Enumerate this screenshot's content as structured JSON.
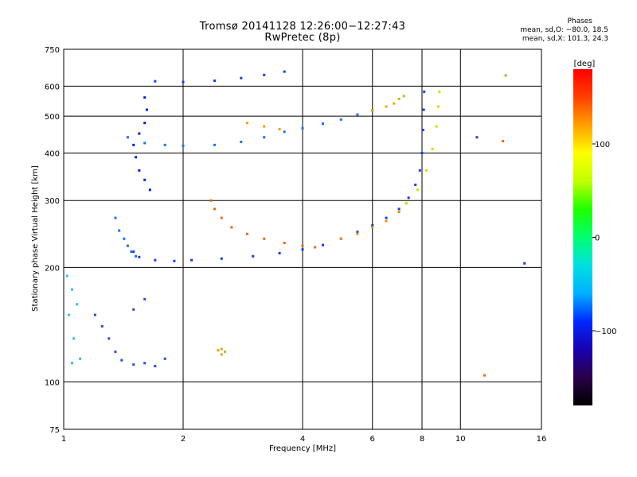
{
  "title_line1": "Tromsø 20141128 12:26:00−12:27:43",
  "title_line2": "RwPretec (8p)",
  "phases": {
    "heading": "Phases",
    "line_o": "mean, sd,O: −80.0, 18.5",
    "line_x": "mean, sd,X: 101.3, 24.3"
  },
  "colorbar": {
    "label": "[deg]",
    "ticks": [
      {
        "value": 100,
        "label": "100"
      },
      {
        "value": 0,
        "label": "0"
      },
      {
        "value": -100,
        "label": "−100"
      }
    ],
    "range": [
      -180,
      180
    ],
    "stops": [
      "#000000",
      "#2a0048",
      "#1a00b0",
      "#0028ff",
      "#00b0ff",
      "#00e0e0",
      "#00ff70",
      "#20ff00",
      "#c0ff00",
      "#ffff00",
      "#ffa000",
      "#ff4000",
      "#ff0000"
    ]
  },
  "chart_data": {
    "type": "scatter",
    "xlabel": "Frequency [MHz]",
    "ylabel": "Stationary phase Virtual Height [km]",
    "xscale": "log",
    "yscale": "log",
    "xlim": [
      1,
      16
    ],
    "ylim": [
      75,
      750
    ],
    "xticks": [
      {
        "value": 1,
        "label": "1"
      },
      {
        "value": 2,
        "label": "2"
      },
      {
        "value": 4,
        "label": "4"
      },
      {
        "value": 6,
        "label": "6"
      },
      {
        "value": 8,
        "label": "8"
      },
      {
        "value": 10,
        "label": "10"
      },
      {
        "value": 16,
        "label": "16"
      }
    ],
    "yticks": [
      {
        "value": 75,
        "label": "75"
      },
      {
        "value": 100,
        "label": "100"
      },
      {
        "value": 200,
        "label": "200"
      },
      {
        "value": 300,
        "label": "300"
      },
      {
        "value": 400,
        "label": "400"
      },
      {
        "value": 500,
        "label": "500"
      },
      {
        "value": 600,
        "label": "600"
      },
      {
        "value": 750,
        "label": "750"
      }
    ],
    "grid": true,
    "series": [
      {
        "color": "#1040e0",
        "points": [
          [
            1.5,
            220
          ],
          [
            1.55,
            213
          ],
          [
            1.7,
            209
          ],
          [
            1.9,
            208
          ],
          [
            2.1,
            209
          ],
          [
            2.5,
            211
          ],
          [
            3.0,
            214
          ],
          [
            3.5,
            218
          ],
          [
            4.0,
            223
          ],
          [
            4.5,
            229
          ],
          [
            5.0,
            238
          ],
          [
            5.5,
            248
          ],
          [
            6.0,
            258
          ],
          [
            6.5,
            270
          ],
          [
            7.0,
            285
          ],
          [
            7.4,
            305
          ],
          [
            7.7,
            330
          ],
          [
            7.9,
            360
          ],
          [
            8.0,
            400
          ],
          [
            8.05,
            460
          ],
          [
            8.08,
            520
          ],
          [
            8.1,
            580
          ]
        ]
      },
      {
        "color": "#1a6fe8",
        "points": [
          [
            1.35,
            270
          ],
          [
            1.38,
            250
          ],
          [
            1.42,
            238
          ],
          [
            1.45,
            228
          ],
          [
            1.48,
            220
          ],
          [
            1.52,
            214
          ]
        ]
      },
      {
        "color": "#e86a10",
        "points": [
          [
            2.35,
            300
          ],
          [
            2.4,
            285
          ],
          [
            2.5,
            270
          ],
          [
            2.65,
            255
          ],
          [
            2.9,
            245
          ],
          [
            3.2,
            238
          ],
          [
            3.6,
            232
          ],
          [
            4.0,
            228
          ],
          [
            4.3,
            226
          ]
        ]
      },
      {
        "color": "#f08c00",
        "points": [
          [
            5.0,
            238
          ],
          [
            5.5,
            245
          ],
          [
            6.0,
            255
          ],
          [
            6.5,
            265
          ],
          [
            7.0,
            280
          ],
          [
            7.3,
            295
          ]
        ]
      },
      {
        "color": "#c8e000",
        "points": [
          [
            7.3,
            295
          ],
          [
            7.8,
            320
          ],
          [
            8.2,
            360
          ],
          [
            8.5,
            410
          ],
          [
            8.7,
            470
          ],
          [
            8.8,
            530
          ],
          [
            8.85,
            580
          ]
        ]
      },
      {
        "color": "#1040e0",
        "points": [
          [
            1.7,
            618
          ],
          [
            2.0,
            615
          ],
          [
            2.4,
            620
          ],
          [
            2.8,
            630
          ],
          [
            3.2,
            642
          ],
          [
            3.6,
            655
          ]
        ]
      },
      {
        "color": "#2070e8",
        "points": [
          [
            1.45,
            440
          ],
          [
            1.6,
            425
          ],
          [
            1.8,
            420
          ],
          [
            2.0,
            418
          ],
          [
            2.4,
            420
          ],
          [
            2.8,
            428
          ],
          [
            3.2,
            440
          ],
          [
            3.6,
            455
          ],
          [
            4.0,
            465
          ],
          [
            4.5,
            478
          ],
          [
            5.0,
            490
          ],
          [
            5.5,
            505
          ],
          [
            6.0,
            518
          ]
        ]
      },
      {
        "color": "#e0b000",
        "points": [
          [
            6.0,
            518
          ],
          [
            6.5,
            530
          ],
          [
            6.8,
            540
          ],
          [
            7.0,
            555
          ],
          [
            7.2,
            565
          ]
        ]
      },
      {
        "color": "#0020d0",
        "points": [
          [
            1.6,
            560
          ],
          [
            1.62,
            520
          ],
          [
            1.6,
            480
          ],
          [
            1.55,
            450
          ],
          [
            1.5,
            420
          ],
          [
            1.52,
            390
          ],
          [
            1.55,
            360
          ],
          [
            1.6,
            340
          ],
          [
            1.65,
            320
          ]
        ]
      },
      {
        "color": "#f0a000",
        "points": [
          [
            2.9,
            480
          ],
          [
            3.2,
            470
          ],
          [
            3.5,
            462
          ]
        ]
      },
      {
        "color": "#2050d0",
        "points": [
          [
            1.2,
            150
          ],
          [
            1.25,
            140
          ],
          [
            1.3,
            130
          ],
          [
            1.35,
            120
          ],
          [
            1.4,
            114
          ],
          [
            1.5,
            111
          ],
          [
            1.6,
            112
          ],
          [
            1.7,
            110
          ],
          [
            1.8,
            115
          ],
          [
            1.5,
            155
          ],
          [
            1.6,
            165
          ]
        ]
      },
      {
        "color": "#30c0e0",
        "points": [
          [
            1.02,
            190
          ],
          [
            1.05,
            175
          ],
          [
            1.08,
            160
          ],
          [
            1.03,
            150
          ],
          [
            1.06,
            130
          ],
          [
            1.1,
            115
          ],
          [
            1.05,
            112
          ]
        ]
      },
      {
        "color": "#e8a020",
        "points": [
          [
            2.5,
            118
          ],
          [
            2.55,
            120
          ],
          [
            2.45,
            121
          ],
          [
            2.5,
            122
          ]
        ]
      },
      {
        "color": "#ff6000",
        "points": [
          [
            11.5,
            104
          ],
          [
            12.8,
            430
          ]
        ]
      },
      {
        "color": "#80c040",
        "points": [
          [
            13.0,
            640
          ]
        ]
      },
      {
        "color": "#2040c0",
        "points": [
          [
            14.5,
            205
          ],
          [
            11.0,
            440
          ]
        ]
      }
    ]
  }
}
